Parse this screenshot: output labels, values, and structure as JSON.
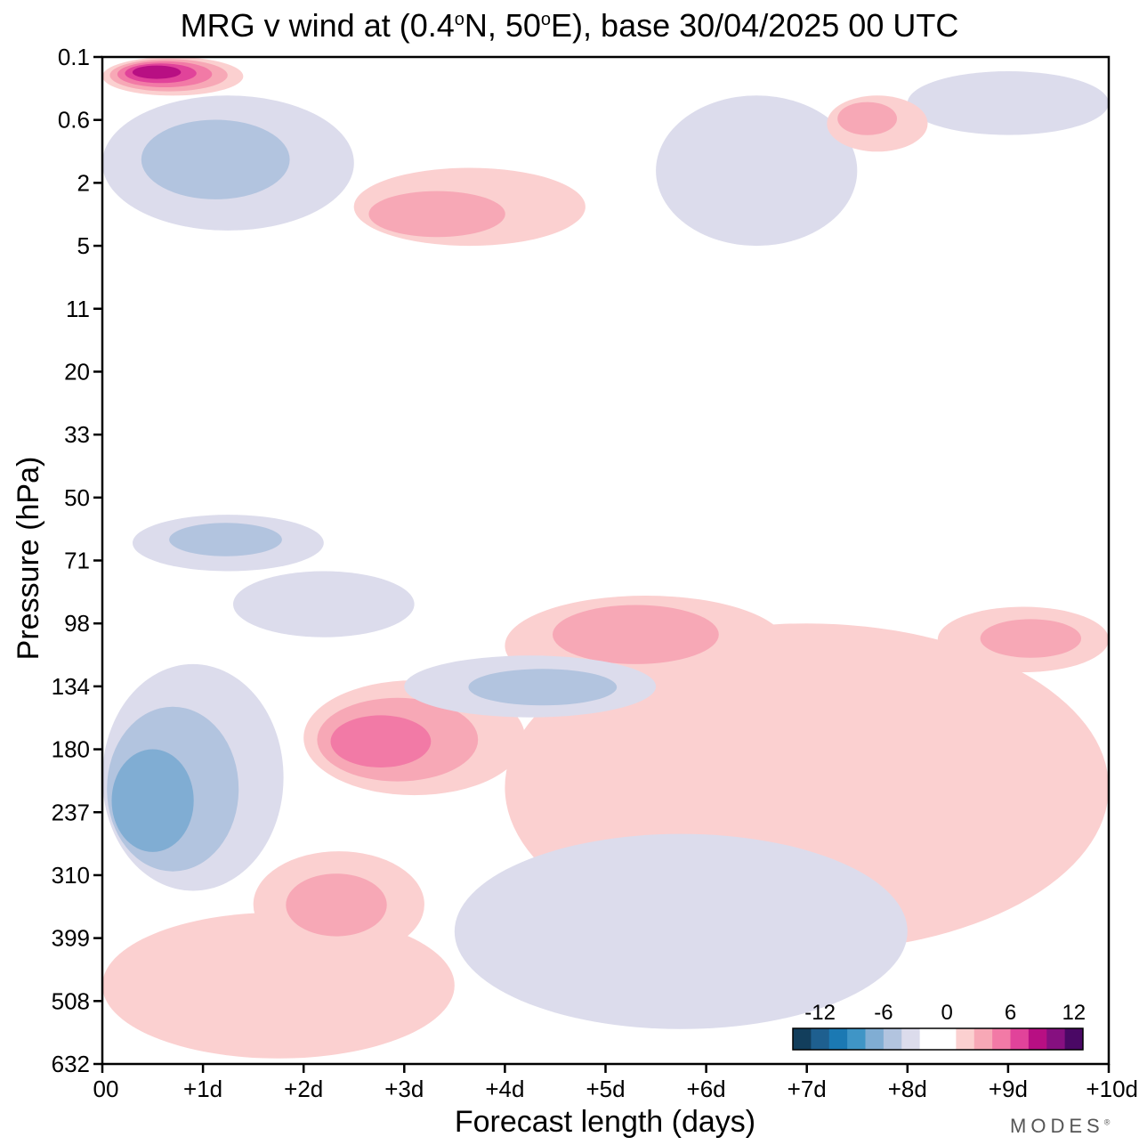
{
  "chart_data": {
    "type": "heatmap",
    "title": "MRG v wind at (0.4°N, 50°E),  base 30/04/2025  00 UTC",
    "title_parts": {
      "t1": "MRG v wind at (0.4",
      "t2": "o",
      "t3": "N, 50",
      "t4": "o",
      "t5": "E),  base 30/04/2025  00 UTC"
    },
    "xlabel": "Forecast length (days)",
    "ylabel": "Pressure (hPa)",
    "x_ticks": [
      "00",
      "+1d",
      "+2d",
      "+3d",
      "+4d",
      "+5d",
      "+6d",
      "+7d",
      "+8d",
      "+9d",
      "+10d"
    ],
    "y_ticks": [
      "0.1",
      "0.6",
      "2",
      "5",
      "11",
      "20",
      "33",
      "50",
      "71",
      "98",
      "134",
      "180",
      "237",
      "310",
      "399",
      "508",
      "632"
    ],
    "xlim_days": [
      0,
      10
    ],
    "ylim_hPa": [
      0.1,
      632
    ],
    "colorbar": {
      "labels": [
        "-12",
        "-6",
        "0",
        "6",
        "12"
      ],
      "colors": [
        "#123e5c",
        "#1e5f8f",
        "#1b79b3",
        "#3f95c6",
        "#80add3",
        "#b2c4df",
        "#dcdcec",
        "#ffffff",
        "#ffffff",
        "#fbd0d0",
        "#f7a8b6",
        "#f27aa6",
        "#e1439a",
        "#b80f83",
        "#861080",
        "#4a0865"
      ]
    },
    "features": [
      {
        "sign": "+",
        "level": 3,
        "day_range": [
          2.0,
          4.2
        ],
        "hPa_range": [
          130,
          220
        ],
        "peak_day": 2.6,
        "peak_hPa": 175
      },
      {
        "sign": "-",
        "level": 3,
        "day_range": [
          0.0,
          1.8
        ],
        "hPa_range": [
          120,
          330
        ],
        "peak_day": 0.3,
        "peak_hPa": 237
      },
      {
        "sign": "+",
        "level": 2,
        "day_range": [
          4.0,
          6.8
        ],
        "hPa_range": [
          85,
          140
        ],
        "peak_day": 5.2,
        "peak_hPa": 98
      },
      {
        "sign": "+",
        "level": 2,
        "day_range": [
          8.3,
          10.0
        ],
        "hPa_range": [
          90,
          125
        ],
        "peak_day": 9.3,
        "peak_hPa": 105
      },
      {
        "sign": "-",
        "level": 2,
        "day_range": [
          3.0,
          5.5
        ],
        "hPa_range": [
          115,
          155
        ],
        "peak_day": 4.5,
        "peak_hPa": 135
      },
      {
        "sign": "-",
        "level": 1,
        "day_range": [
          3.5,
          8.0
        ],
        "hPa_range": [
          260,
          560
        ],
        "peak_day": 6.0,
        "peak_hPa": 360
      },
      {
        "sign": "+",
        "level": 2,
        "day_range": [
          1.5,
          3.2
        ],
        "hPa_range": [
          280,
          430
        ],
        "peak_day": 2.3,
        "peak_hPa": 350
      },
      {
        "sign": "+",
        "level": 1,
        "day_range": [
          0.0,
          3.5
        ],
        "hPa_range": [
          360,
          620
        ],
        "peak_day": 0.8,
        "peak_hPa": 460
      },
      {
        "sign": "-",
        "level": 2,
        "day_range": [
          0.3,
          2.2
        ],
        "hPa_range": [
          55,
          75
        ],
        "peak_day": 1.2,
        "peak_hPa": 62
      },
      {
        "sign": "-",
        "level": 1,
        "day_range": [
          1.3,
          3.1
        ],
        "hPa_range": [
          75,
          105
        ],
        "peak_day": 2.2,
        "peak_hPa": 88
      },
      {
        "sign": "+",
        "level": 5,
        "day_range": [
          0.0,
          1.4
        ],
        "hPa_range": [
          0.1,
          0.3
        ],
        "peak_day": 0.5,
        "peak_hPa": 0.15
      },
      {
        "sign": "-",
        "level": 2,
        "day_range": [
          0.0,
          2.5
        ],
        "hPa_range": [
          0.3,
          4
        ],
        "peak_day": 1.0,
        "peak_hPa": 1.2
      },
      {
        "sign": "+",
        "level": 2,
        "day_range": [
          2.5,
          4.8
        ],
        "hPa_range": [
          1.5,
          5
        ],
        "peak_day": 3.0,
        "peak_hPa": 3.5
      },
      {
        "sign": "-",
        "level": 1,
        "day_range": [
          5.5,
          7.5
        ],
        "hPa_range": [
          0.3,
          5
        ],
        "peak_day": 6.0,
        "peak_hPa": 2
      },
      {
        "sign": "+",
        "level": 2,
        "day_range": [
          7.2,
          8.2
        ],
        "hPa_range": [
          0.3,
          1.1
        ],
        "peak_day": 7.5,
        "peak_hPa": 0.5
      },
      {
        "sign": "-",
        "level": 1,
        "day_range": [
          8.0,
          10.0
        ],
        "hPa_range": [
          0.15,
          0.8
        ],
        "peak_day": 9.0,
        "peak_hPa": 0.35
      },
      {
        "sign": "+",
        "level": 1,
        "day_range": [
          4.0,
          10.0
        ],
        "hPa_range": [
          98,
          420
        ],
        "peak_day": 8.8,
        "peak_hPa": 200
      }
    ]
  },
  "logo": {
    "text": "MODES",
    "mark": "®"
  }
}
